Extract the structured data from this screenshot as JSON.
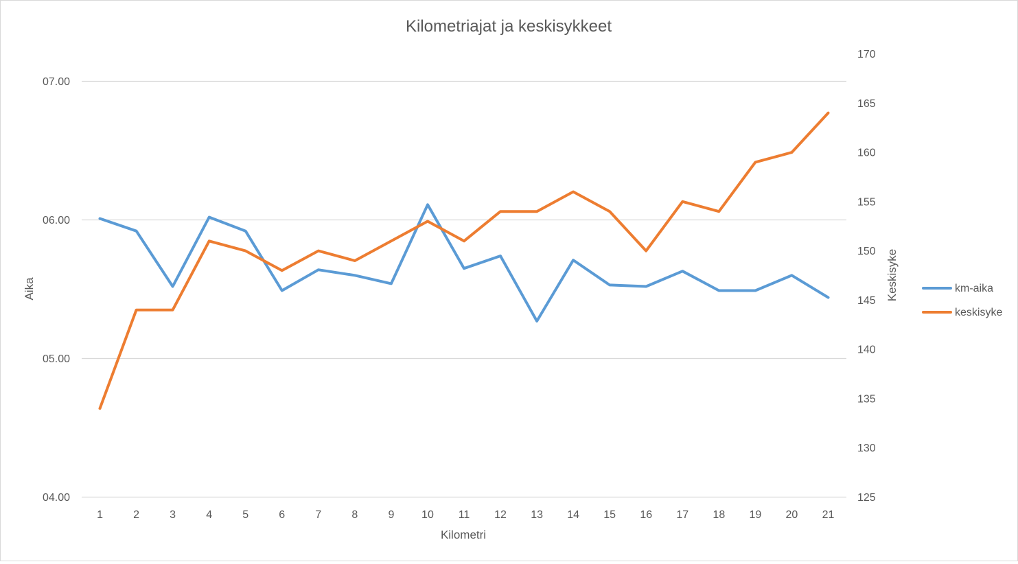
{
  "chart_data": {
    "type": "line",
    "title": "Kilometriajat ja keskisykkeet",
    "xlabel": "Kilometri",
    "ylabel": "Aika",
    "y2label": "Keskisyke",
    "categories": [
      "1",
      "2",
      "3",
      "4",
      "5",
      "6",
      "7",
      "8",
      "9",
      "10",
      "11",
      "12",
      "13",
      "14",
      "15",
      "16",
      "17",
      "18",
      "19",
      "20",
      "21"
    ],
    "y_axis": {
      "min": 4.0,
      "max": 7.0,
      "ticks": [
        4.0,
        5.0,
        6.0,
        7.0
      ],
      "tick_labels": [
        "04.00",
        "05.00",
        "06.00",
        "07.00"
      ]
    },
    "y2_axis": {
      "min": 125,
      "max": 170,
      "ticks": [
        125,
        130,
        135,
        140,
        145,
        150,
        155,
        160,
        165,
        170
      ],
      "tick_labels": [
        "125",
        "130",
        "135",
        "140",
        "145",
        "150",
        "155",
        "160",
        "165",
        "170"
      ]
    },
    "grid": true,
    "legend_position": "right",
    "series": [
      {
        "name": "km-aika",
        "axis": "left",
        "color": "#5b9bd5",
        "values": [
          6.01,
          5.92,
          5.52,
          6.02,
          5.92,
          5.49,
          5.64,
          5.6,
          5.54,
          6.11,
          5.65,
          5.74,
          5.27,
          5.71,
          5.53,
          5.52,
          5.63,
          5.49,
          5.49,
          5.6,
          5.44
        ]
      },
      {
        "name": "keskisyke",
        "axis": "right",
        "color": "#ed7d31",
        "values": [
          134,
          144,
          144,
          151,
          150,
          148,
          150,
          149,
          151,
          153,
          151,
          154,
          154,
          156,
          154,
          150,
          155,
          154,
          159,
          160,
          164
        ]
      }
    ]
  }
}
